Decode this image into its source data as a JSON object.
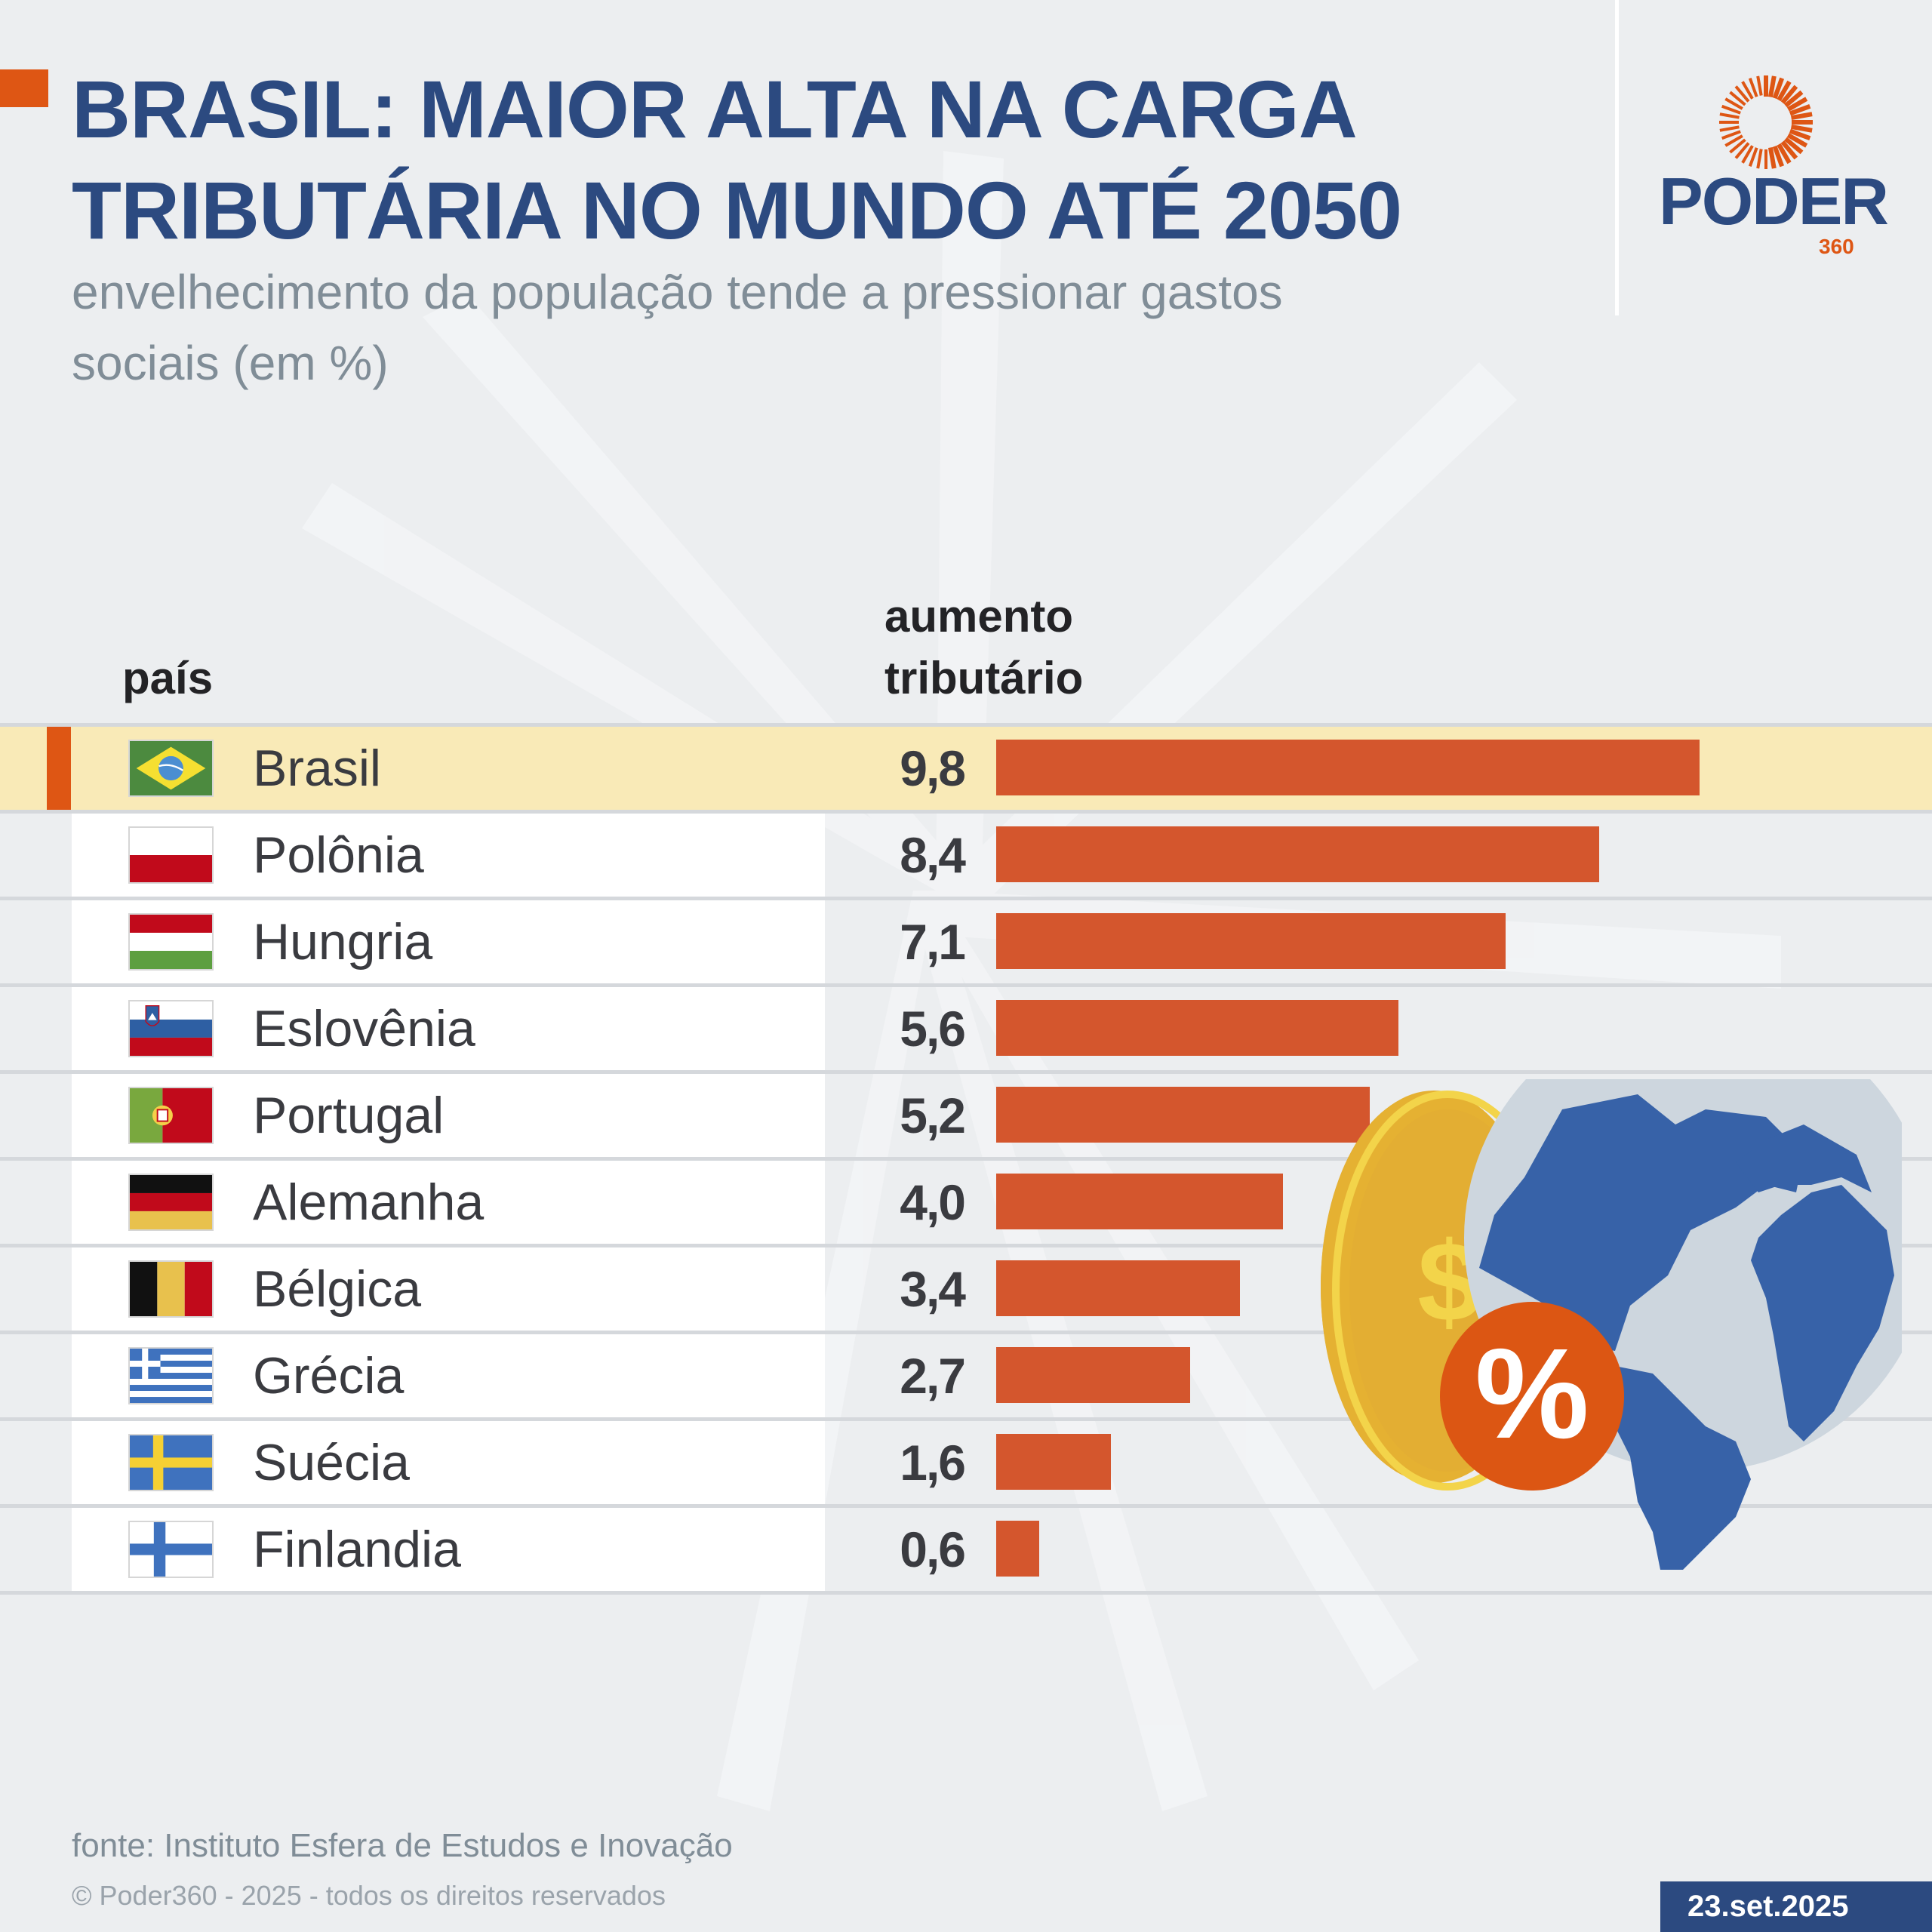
{
  "header": {
    "title_lines": [
      "BRASIL: MAIOR ALTA NA CARGA",
      "TRIBUTÁRIA NO MUNDO ATÉ 2050"
    ],
    "subtitle_lines": [
      "envelhecimento da população tende a pressionar gastos",
      "sociais (em %)"
    ]
  },
  "brand": {
    "name": "PODER",
    "number": "360",
    "icon": "sunburst-logo-icon"
  },
  "columns": {
    "country": "país",
    "value_lines": [
      "aumento",
      "tributário"
    ]
  },
  "colors": {
    "title": "#2c4a80",
    "accent": "#de5614",
    "bar": "#d4562d",
    "highlight_row": "#f9eab7",
    "background": "#eceef0"
  },
  "chart_data": {
    "type": "bar",
    "orientation": "horizontal",
    "title": "BRASIL: MAIOR ALTA NA CARGA TRIBUTÁRIA NO MUNDO ATÉ 2050",
    "subtitle": "envelhecimento da população tende a pressionar gastos sociais (em %)",
    "xlabel": "aumento tributário",
    "ylabel": "país",
    "unit": "%",
    "grid": false,
    "highlighted": "Brasil",
    "categories": [
      "Brasil",
      "Polônia",
      "Hungria",
      "Eslovênia",
      "Portugal",
      "Alemanha",
      "Bélgica",
      "Grécia",
      "Suécia",
      "Finlandia"
    ],
    "values": [
      9.8,
      8.4,
      7.1,
      5.6,
      5.2,
      4.0,
      3.4,
      2.7,
      1.6,
      0.6
    ],
    "value_labels": [
      "9,8",
      "8,4",
      "7,1",
      "5,6",
      "5,2",
      "4,0",
      "3,4",
      "2,7",
      "1,6",
      "0,6"
    ],
    "flags": [
      "brazil-flag-icon",
      "poland-flag-icon",
      "hungary-flag-icon",
      "slovenia-flag-icon",
      "portugal-flag-icon",
      "germany-flag-icon",
      "belgium-flag-icon",
      "greece-flag-icon",
      "sweden-flag-icon",
      "finland-flag-icon"
    ],
    "xlim": [
      0,
      10
    ]
  },
  "illustration": {
    "icons": [
      "gold-coin-dollar-icon",
      "globe-icon",
      "percent-badge-icon"
    ],
    "percent_symbol": "%",
    "dollar_symbol": "$"
  },
  "footer": {
    "source": "fonte: Instituto Esfera de Estudos e Inovação",
    "copyright": "© Poder360 - 2025 - todos os direitos reservados",
    "date": "23.set.2025"
  }
}
